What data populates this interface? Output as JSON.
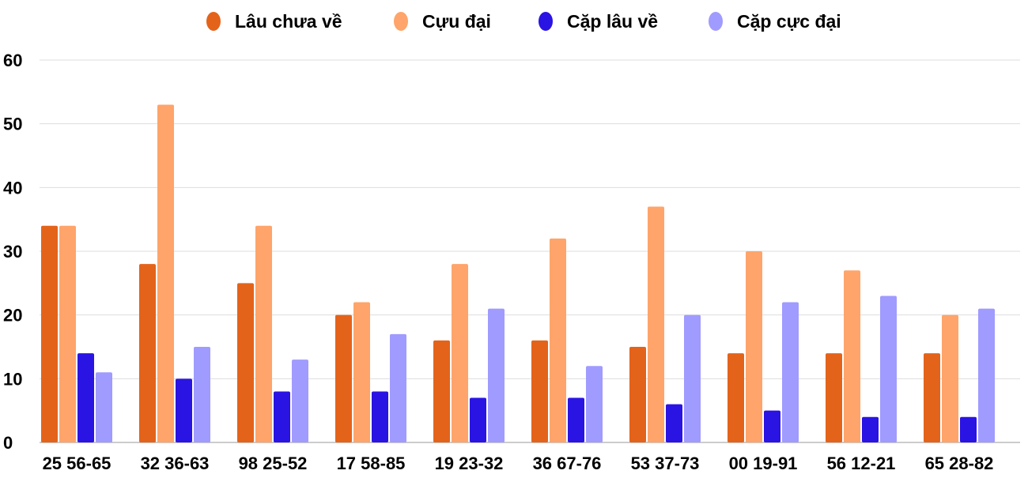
{
  "chart_data": {
    "type": "bar",
    "categories": [
      "25 56-65",
      "32 36-63",
      "98 25-52",
      "17 58-85",
      "19 23-32",
      "36 67-76",
      "53 37-73",
      "00 19-91",
      "56 12-21",
      "65 28-82"
    ],
    "series": [
      {
        "name": "Lâu chưa về",
        "color": "#e4631a",
        "values": [
          34,
          28,
          25,
          20,
          16,
          16,
          15,
          14,
          14,
          14
        ]
      },
      {
        "name": "Cựu đại",
        "color": "#ffa46a",
        "values": [
          34,
          53,
          34,
          22,
          28,
          32,
          37,
          30,
          27,
          20
        ]
      },
      {
        "name": "Cặp lâu về",
        "color": "#2a14e3",
        "values": [
          14,
          10,
          8,
          8,
          7,
          7,
          6,
          5,
          4,
          4
        ]
      },
      {
        "name": "Cặp cực đại",
        "color": "#a09bff",
        "values": [
          11,
          15,
          13,
          17,
          21,
          12,
          20,
          22,
          23,
          21
        ]
      }
    ],
    "yticks": [
      "0",
      "10",
      "20",
      "30",
      "40",
      "50",
      "60"
    ],
    "ylim": [
      0,
      60
    ],
    "grid": true,
    "legend": "top"
  }
}
